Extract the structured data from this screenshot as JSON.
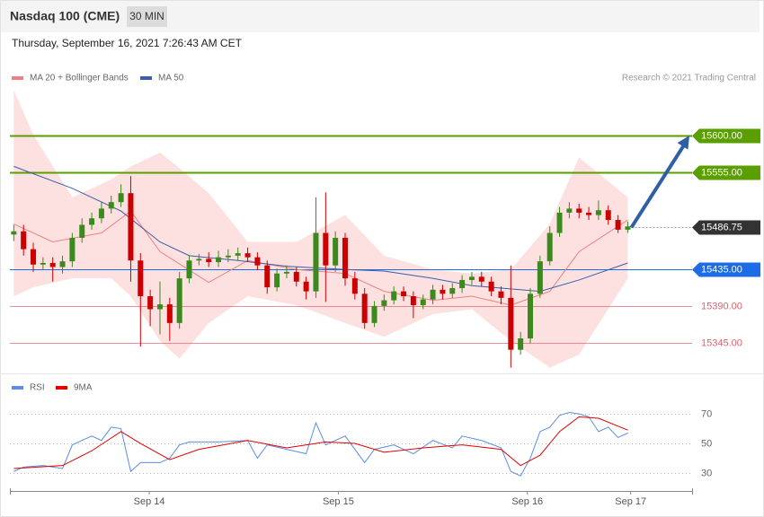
{
  "header": {
    "title": "Nasdaq 100 (CME)",
    "timeframe": "30 MIN",
    "date": "Thursday, September 16, 2021 7:26:43 AM CET"
  },
  "chart_data": [
    {
      "type": "candlestick",
      "legend": [
        "MA 20 + Bollinger Bands",
        "MA 50"
      ],
      "credit": "Research © 2021 Trading Central",
      "up_color": "#3a8a1e",
      "down_color": "#cc0000",
      "open": [
        15478,
        15482,
        15460,
        15441,
        15443,
        15438,
        15445,
        15474,
        15490,
        15498,
        15510,
        15518,
        15529,
        15446,
        15402,
        15386,
        15392,
        15369,
        15424,
        15446,
        15448,
        15444,
        15450,
        15452,
        15455,
        15450,
        15440,
        15413,
        15430,
        15432,
        15420,
        15408,
        15480,
        15440,
        15474,
        15424,
        15405,
        15369,
        15390,
        15397,
        15408,
        15402,
        15391,
        15398,
        15410,
        15405,
        15412,
        15422,
        15426,
        15420,
        15408,
        15400,
        15336,
        15350,
        15405,
        15445,
        15480,
        15505,
        15510,
        15505,
        15502,
        15508,
        15496,
        15484
      ],
      "high": [
        15490,
        15490,
        15468,
        15450,
        15450,
        15452,
        15480,
        15498,
        15505,
        15518,
        15526,
        15540,
        15550,
        15455,
        15410,
        15420,
        15400,
        15432,
        15452,
        15454,
        15456,
        15458,
        15460,
        15462,
        15462,
        15456,
        15446,
        15436,
        15440,
        15438,
        15426,
        15524,
        15530,
        15482,
        15480,
        15432,
        15412,
        15396,
        15404,
        15414,
        15414,
        15408,
        15404,
        15416,
        15416,
        15418,
        15428,
        15432,
        15432,
        15426,
        15414,
        15440,
        15358,
        15412,
        15452,
        15488,
        15512,
        15518,
        15516,
        15512,
        15520,
        15514,
        15502,
        15494
      ],
      "low": [
        15470,
        15452,
        15432,
        15434,
        15420,
        15430,
        15438,
        15468,
        15484,
        15492,
        15504,
        15512,
        15420,
        15340,
        15365,
        15355,
        15347,
        15362,
        15418,
        15440,
        15438,
        15438,
        15444,
        15446,
        15444,
        15434,
        15405,
        15408,
        15424,
        15414,
        15398,
        15400,
        15395,
        15432,
        15415,
        15398,
        15362,
        15364,
        15384,
        15392,
        15396,
        15375,
        15386,
        15392,
        15398,
        15400,
        15406,
        15416,
        15414,
        15402,
        15392,
        15314,
        15330,
        15344,
        15400,
        15440,
        15475,
        15498,
        15498,
        15496,
        15496,
        15490,
        15480,
        15480
      ],
      "close": [
        15482,
        15460,
        15441,
        15443,
        15438,
        15445,
        15474,
        15490,
        15498,
        15510,
        15518,
        15529,
        15446,
        15402,
        15386,
        15392,
        15369,
        15424,
        15446,
        15448,
        15444,
        15450,
        15452,
        15455,
        15450,
        15440,
        15413,
        15430,
        15432,
        15420,
        15408,
        15480,
        15440,
        15474,
        15424,
        15405,
        15369,
        15390,
        15397,
        15408,
        15402,
        15391,
        15398,
        15410,
        15405,
        15412,
        15422,
        15426,
        15420,
        15408,
        15400,
        15336,
        15350,
        15405,
        15445,
        15480,
        15505,
        15510,
        15505,
        15502,
        15508,
        15496,
        15484,
        15488
      ],
      "bands": {
        "color": "#fde0e0",
        "x": [
          0,
          2,
          6,
          10,
          12,
          15,
          17,
          20,
          24,
          29,
          34,
          38,
          43,
          47,
          51,
          55,
          58,
          63
        ],
        "upper": [
          15656,
          15601,
          15524,
          15546,
          15562,
          15579,
          15560,
          15529,
          15469,
          15469,
          15502,
          15452,
          15435,
          15430,
          15435,
          15491,
          15573,
          15524
        ],
        "lower": [
          15402,
          15413,
          15424,
          15424,
          15402,
          15347,
          15325,
          15369,
          15402,
          15391,
          15369,
          15352,
          15380,
          15386,
          15347,
          15314,
          15330,
          15424
        ]
      },
      "series": [
        {
          "name": "MA 20",
          "color": "#f08080",
          "x": [
            0,
            4,
            9,
            12,
            15,
            20,
            24,
            29,
            34,
            38,
            43,
            47,
            51,
            55,
            58,
            63
          ],
          "values": [
            15491,
            15469,
            15480,
            15507,
            15457,
            15419,
            15446,
            15435,
            15430,
            15408,
            15397,
            15402,
            15391,
            15408,
            15457,
            15496
          ]
        },
        {
          "name": "MA 50",
          "color": "#3a5fa8",
          "x": [
            0,
            6,
            11,
            15,
            18,
            23,
            28,
            34,
            38,
            43,
            47,
            51,
            54,
            58,
            63
          ],
          "values": [
            15562,
            15535,
            15507,
            15469,
            15452,
            15446,
            15439,
            15435,
            15433,
            15424,
            15415,
            15411,
            15408,
            15422,
            15443
          ]
        }
      ],
      "levels": [
        {
          "value": 15600,
          "label": "15600.00",
          "color": "#5a9e00",
          "style": "tag"
        },
        {
          "value": 15555,
          "label": "15555.00",
          "color": "#5a9e00",
          "style": "tag"
        },
        {
          "value": 15435,
          "label": "15435.00",
          "color": "#1e6be6",
          "style": "tag"
        },
        {
          "value": 15390,
          "label": "15390.00",
          "color": "#e06070",
          "style": "text"
        },
        {
          "value": 15345,
          "label": "15345.00",
          "color": "#e06070",
          "style": "text"
        }
      ],
      "last_price": 15486.75,
      "last_color": "#333333",
      "arrow_color": "#2f5fa5",
      "xlim": [
        -0.4,
        69.6
      ],
      "ylim": [
        15308,
        15662
      ]
    },
    {
      "type": "line",
      "legend_colors": [
        "#5b8de0",
        "#e00000"
      ],
      "series": [
        {
          "name": "RSI",
          "color": "#5b8de0",
          "x": [
            0,
            1,
            3,
            5,
            6,
            7,
            8,
            9,
            10,
            11,
            12,
            13,
            15,
            16,
            17,
            18,
            21,
            24,
            25,
            26,
            28,
            30,
            31,
            32,
            33,
            34,
            35,
            36,
            37,
            39,
            41,
            43,
            45,
            46,
            48,
            50,
            51,
            52,
            53,
            54,
            55,
            56,
            57,
            58,
            59,
            60,
            61,
            62,
            63
          ],
          "values": [
            31,
            34,
            35,
            33,
            49,
            52,
            55,
            52,
            61,
            60,
            31,
            37,
            37,
            40,
            49,
            51,
            51,
            52,
            40,
            49,
            46,
            43,
            64,
            49,
            52,
            55,
            46,
            37,
            46,
            49,
            43,
            52,
            47,
            55,
            52,
            47,
            31,
            28,
            40,
            58,
            61,
            69,
            71,
            70,
            68,
            58,
            61,
            54,
            57
          ]
        },
        {
          "name": "9MA",
          "color": "#e00000",
          "x": [
            0,
            5,
            8,
            11,
            13,
            16,
            19,
            24,
            28,
            32,
            35,
            38,
            42,
            46,
            50,
            52,
            54,
            56,
            58,
            60,
            63
          ],
          "values": [
            33,
            35,
            45,
            58,
            50,
            39,
            46,
            52,
            47,
            51,
            50,
            44,
            47,
            49,
            46,
            35,
            42,
            58,
            68,
            67,
            59
          ]
        }
      ],
      "xlim": [
        -0.4,
        69.6
      ],
      "ylim": [
        19,
        95
      ],
      "yticks": [
        30,
        50,
        70
      ],
      "xticks": [
        {
          "value": 13.9,
          "label": "Sep 14"
        },
        {
          "value": 33.3,
          "label": "Sep 15"
        },
        {
          "value": 52.7,
          "label": "Sep 16"
        },
        {
          "value": 63.3,
          "label": "Sep 17"
        }
      ]
    }
  ]
}
